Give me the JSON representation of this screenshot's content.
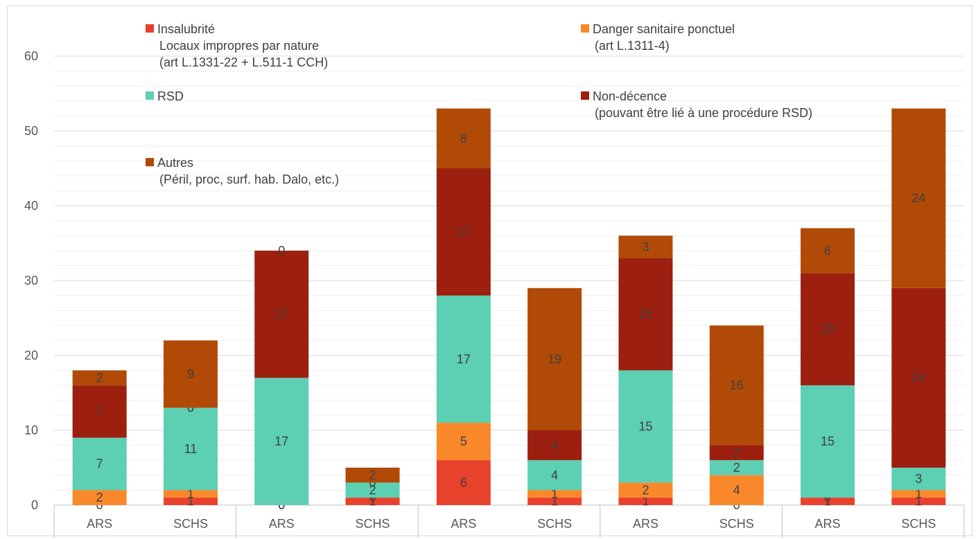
{
  "chart_data": {
    "type": "bar",
    "stacked": true,
    "categories": [
      "ARS",
      "SCHS",
      "ARS",
      "SCHS",
      "ARS",
      "SCHS",
      "ARS",
      "SCHS",
      "ARS",
      "SCHS"
    ],
    "ylim": [
      0,
      60
    ],
    "yticks": [
      0,
      10,
      20,
      30,
      40,
      50,
      60
    ],
    "grid": true,
    "minor_grid": true,
    "legend_position": "inside-top",
    "series": [
      {
        "name": "Insalubrité\nLocaux impropres par nature\n(art L.1331-22 + L.511-1 CCH)",
        "color": "#e8412c",
        "values": [
          0,
          1,
          0,
          1,
          6,
          1,
          1,
          0,
          1,
          1
        ]
      },
      {
        "name": "Danger sanitaire ponctuel\n(art L.1311-4)",
        "color": "#f9882a",
        "values": [
          2,
          1,
          0,
          0,
          5,
          1,
          2,
          4,
          0,
          1
        ]
      },
      {
        "name": "RSD",
        "color": "#5dcfb3",
        "values": [
          7,
          11,
          17,
          2,
          17,
          4,
          15,
          2,
          15,
          3
        ]
      },
      {
        "name": "Non-décence\n(pouvant être lié à une procédure RSD)",
        "color": "#9c1f0f",
        "values": [
          7,
          0,
          17,
          0,
          17,
          4,
          15,
          2,
          15,
          24
        ]
      },
      {
        "name": "Autres\n(Péril, proc, surf. hab. Dalo, etc.)",
        "color": "#b04a06",
        "values": [
          2,
          9,
          0,
          2,
          8,
          19,
          3,
          16,
          6,
          24
        ]
      }
    ]
  }
}
